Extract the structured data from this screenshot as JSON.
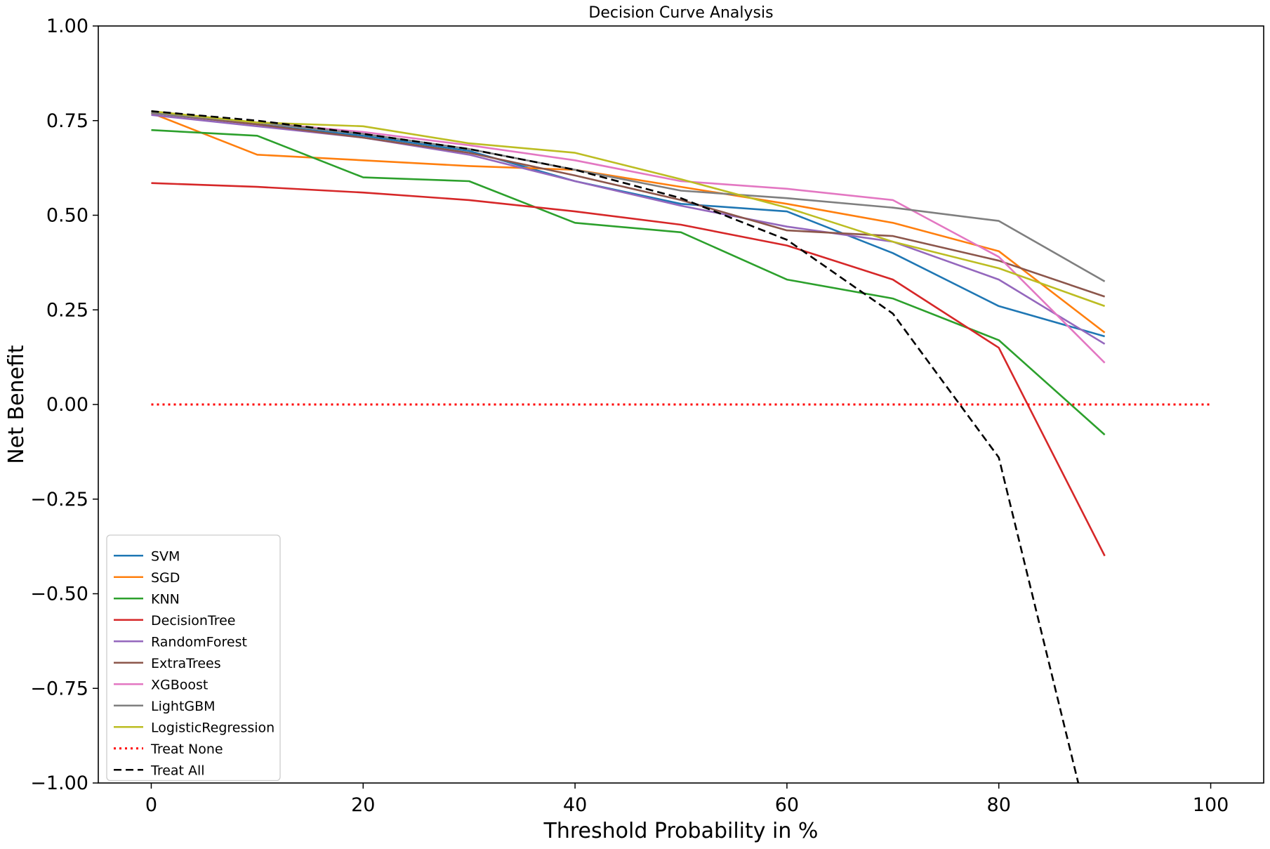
{
  "chart_data": {
    "type": "line",
    "title": "Decision Curve Analysis",
    "xlabel": "Threshold Probability in %",
    "ylabel": "Net Benefit",
    "xlim": [
      -5,
      105
    ],
    "ylim": [
      -1.0,
      1.0
    ],
    "xticks": [
      0,
      20,
      40,
      60,
      80,
      100
    ],
    "yticks": [
      1.0,
      0.75,
      0.5,
      0.25,
      0.0,
      -0.25,
      -0.5,
      -0.75,
      -1.0
    ],
    "xtick_labels": [
      "0",
      "20",
      "40",
      "60",
      "80",
      "100"
    ],
    "ytick_labels": [
      "1.00",
      "0.75",
      "0.50",
      "0.25",
      "0.00",
      "−0.25",
      "−0.50",
      "−0.75",
      "−1.00"
    ],
    "grid": false,
    "legend_position": "lower-left",
    "x": [
      0,
      10,
      20,
      30,
      40,
      50,
      60,
      70,
      80,
      90
    ],
    "series": [
      {
        "name": "SVM",
        "color": "#1f77b4",
        "style": "solid",
        "values": [
          0.77,
          0.74,
          0.71,
          0.67,
          0.59,
          0.53,
          0.51,
          0.4,
          0.26,
          0.18
        ]
      },
      {
        "name": "SGD",
        "color": "#ff7f0e",
        "style": "solid",
        "values": [
          0.77,
          0.66,
          0.645,
          0.63,
          0.62,
          0.575,
          0.53,
          0.48,
          0.405,
          0.19
        ]
      },
      {
        "name": "KNN",
        "color": "#2ca02c",
        "style": "solid",
        "values": [
          0.725,
          0.71,
          0.6,
          0.59,
          0.48,
          0.455,
          0.33,
          0.28,
          0.17,
          -0.08
        ]
      },
      {
        "name": "DecisionTree",
        "color": "#d62728",
        "style": "solid",
        "values": [
          0.585,
          0.575,
          0.56,
          0.54,
          0.51,
          0.475,
          0.42,
          0.33,
          0.15,
          -0.4
        ]
      },
      {
        "name": "RandomForest",
        "color": "#9467bd",
        "style": "solid",
        "values": [
          0.765,
          0.735,
          0.705,
          0.66,
          0.59,
          0.525,
          0.47,
          0.43,
          0.33,
          0.16
        ]
      },
      {
        "name": "ExtraTrees",
        "color": "#8c564b",
        "style": "solid",
        "values": [
          0.77,
          0.74,
          0.705,
          0.665,
          0.605,
          0.54,
          0.46,
          0.445,
          0.38,
          0.285
        ]
      },
      {
        "name": "XGBoost",
        "color": "#e377c2",
        "style": "solid",
        "values": [
          0.77,
          0.745,
          0.72,
          0.685,
          0.645,
          0.59,
          0.57,
          0.54,
          0.39,
          0.11
        ]
      },
      {
        "name": "LightGBM",
        "color": "#7f7f7f",
        "style": "solid",
        "values": [
          0.77,
          0.745,
          0.715,
          0.675,
          0.62,
          0.565,
          0.545,
          0.52,
          0.485,
          0.325
        ]
      },
      {
        "name": "LogisticRegression",
        "color": "#bcbd22",
        "style": "solid",
        "values": [
          0.775,
          0.745,
          0.735,
          0.69,
          0.665,
          0.595,
          0.52,
          0.43,
          0.36,
          0.26
        ]
      },
      {
        "name": "Treat None",
        "color": "#ff0000",
        "style": "dotted",
        "x": [
          0,
          100
        ],
        "values": [
          0.0,
          0.0
        ]
      },
      {
        "name": "Treat All",
        "color": "#000000",
        "style": "dashed",
        "x": [
          0,
          10,
          20,
          30,
          40,
          50,
          60,
          70,
          80,
          87.5
        ],
        "values": [
          0.775,
          0.75,
          0.715,
          0.675,
          0.62,
          0.545,
          0.435,
          0.24,
          -0.14,
          -1.0
        ]
      }
    ]
  }
}
